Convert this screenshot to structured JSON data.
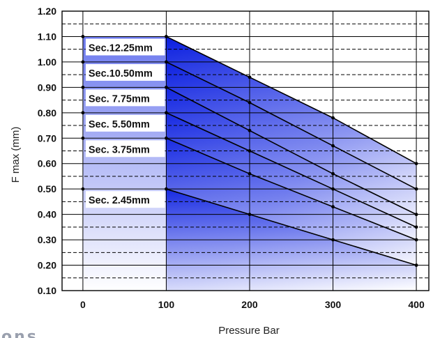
{
  "chart_data": {
    "type": "area",
    "title": "",
    "xlabel": "Pressure Bar",
    "ylabel": "F max (mm)",
    "x": [
      0,
      100,
      200,
      300,
      400
    ],
    "xlim": [
      -25,
      415
    ],
    "ylim": [
      0.1,
      1.2
    ],
    "x_ticks": [
      "0",
      "100",
      "200",
      "300",
      "400"
    ],
    "y_ticks": [
      "0.10",
      "0.20",
      "0.30",
      "0.40",
      "0.50",
      "0.60",
      "0.70",
      "0.80",
      "0.90",
      "1.00",
      "1.10",
      "1.20"
    ],
    "grid": true,
    "series": [
      {
        "name": "Sec.12.25mm",
        "values": [
          1.1,
          1.1,
          0.94,
          0.78,
          0.6
        ]
      },
      {
        "name": "Sec.10.50mm",
        "values": [
          1.0,
          1.0,
          0.84,
          0.67,
          0.5
        ]
      },
      {
        "name": "Sec. 7.75mm",
        "values": [
          0.9,
          0.9,
          0.73,
          0.56,
          0.4
        ]
      },
      {
        "name": "Sec. 5.50mm",
        "values": [
          0.8,
          0.8,
          0.65,
          0.5,
          0.35
        ]
      },
      {
        "name": "Sec. 3.75mm",
        "values": [
          0.7,
          0.7,
          0.56,
          0.43,
          0.3
        ]
      },
      {
        "name": "Sec. 2.45mm",
        "values": [
          0.5,
          0.5,
          0.4,
          0.3,
          0.2
        ]
      }
    ],
    "colors": {
      "fill_dark": "#0a1ee0",
      "fill_light": "#ffffff",
      "line": "#000000",
      "label_box": "#ffffff"
    }
  },
  "fragment": {
    "text": "ons",
    "color": "#9aa0ae"
  }
}
